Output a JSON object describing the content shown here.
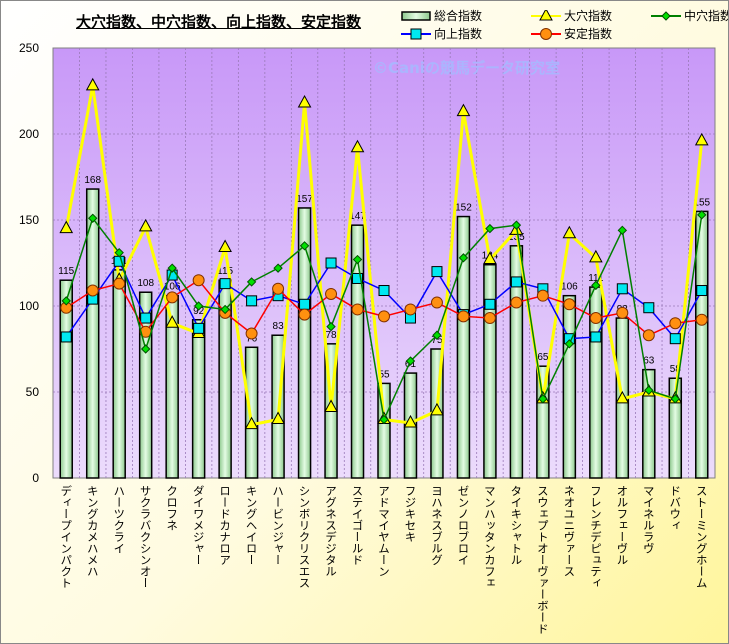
{
  "chart_data": {
    "type": "bar+line",
    "title": "大穴指数、中穴指数、向上指数、安定指数",
    "watermark": "©Caniの競馬データ研究室",
    "ylim": [
      0,
      250
    ],
    "yticks": [
      0,
      50,
      100,
      150,
      200,
      250
    ],
    "grid": true,
    "legend_position": "top-right",
    "categories": [
      "ディープインパクト",
      "キングカメハメハ",
      "ハーツクライ",
      "サクラバクシンオー",
      "クロフネ",
      "ダイワメジャー",
      "ロードカナロア",
      "キングヘイロー",
      "ハービンジャー",
      "シンボリクリスエス",
      "アグネスデジタル",
      "ステイゴールド",
      "アドマイヤムーン",
      "フジキセキ",
      "ヨハネスブルグ",
      "ゼンノロブロイ",
      "マンハッタンカフェ",
      "タイキシャトル",
      "スウェプトオーヴァーボード",
      "ネオユニヴァース",
      "フレンチデピュティ",
      "オルフェーヴル",
      "マイネルラヴ",
      "ドバウィ",
      "ストーミングホーム"
    ],
    "series": [
      {
        "name": "総合指数",
        "type": "bar",
        "color": "#c8f0c8",
        "values": [
          115,
          168,
          121,
          108,
          106,
          92,
          115,
          76,
          83,
          157,
          78,
          147,
          55,
          61,
          75,
          152,
          124,
          135,
          65,
          106,
          111,
          93,
          63,
          58,
          155
        ]
      },
      {
        "name": "大穴指数",
        "type": "line",
        "color": "#ffff00",
        "marker": "triangle",
        "values": [
          145,
          228,
          115,
          146,
          90,
          84,
          134,
          31,
          34,
          218,
          41,
          192,
          34,
          32,
          39,
          213,
          127,
          144,
          46,
          142,
          128,
          46,
          50,
          46,
          196
        ]
      },
      {
        "name": "中穴指数",
        "type": "line",
        "color": "#008000",
        "marker": "diamond",
        "values": [
          103,
          151,
          131,
          75,
          122,
          100,
          98,
          114,
          122,
          135,
          88,
          127,
          34,
          68,
          83,
          128,
          145,
          147,
          46,
          78,
          112,
          144,
          51,
          46,
          153
        ]
      },
      {
        "name": "向上指数",
        "type": "line",
        "color": "#0000ff",
        "marker": "square",
        "values": [
          82,
          104,
          126,
          93,
          118,
          87,
          113,
          103,
          106,
          101,
          125,
          116,
          109,
          93,
          120,
          95,
          101,
          114,
          110,
          81,
          82,
          110,
          99,
          81,
          109
        ]
      },
      {
        "name": "安定指数",
        "type": "line",
        "color": "#ff0000",
        "marker": "circle",
        "values": [
          99,
          109,
          113,
          85,
          105,
          115,
          96,
          84,
          110,
          95,
          107,
          98,
          94,
          98,
          102,
          94,
          93,
          102,
          106,
          101,
          93,
          96,
          83,
          90,
          92
        ]
      }
    ]
  }
}
